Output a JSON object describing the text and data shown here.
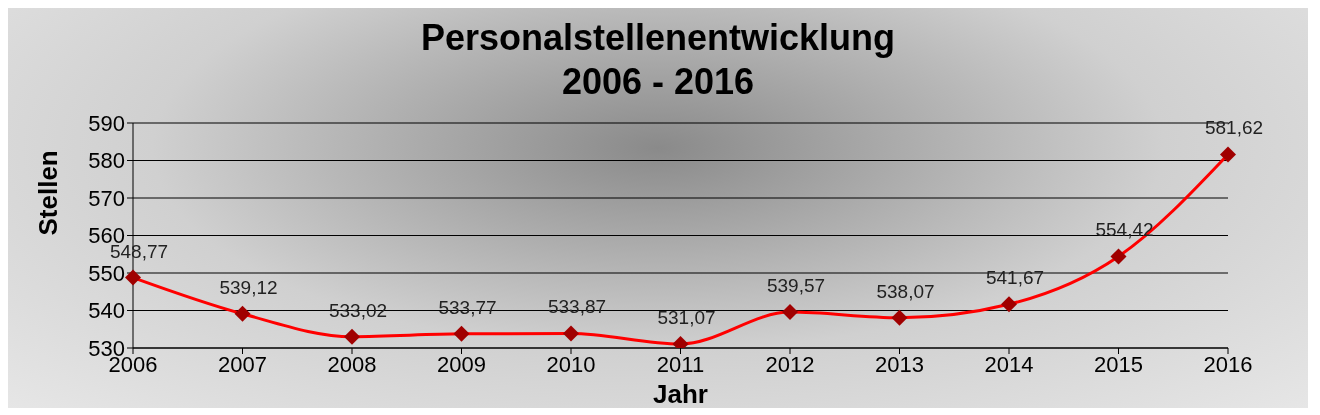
{
  "chart_data": {
    "type": "line",
    "title": "Personalstellenentwicklung\n2006 - 2016",
    "xlabel": "Jahr",
    "ylabel": "Stellen",
    "categories": [
      "2006",
      "2007",
      "2008",
      "2009",
      "2010",
      "2011",
      "2012",
      "2013",
      "2014",
      "2015",
      "2016"
    ],
    "series": [
      {
        "color": "#ff0000",
        "values": [
          548.77,
          539.12,
          533.02,
          533.77,
          533.87,
          531.07,
          539.57,
          538.07,
          541.67,
          554.42,
          581.62
        ],
        "value_labels": [
          "548,77",
          "539,12",
          "533,02",
          "533,77",
          "533,87",
          "531,07",
          "539,57",
          "538,07",
          "541,67",
          "554,42",
          "581,62"
        ]
      }
    ],
    "ylim": [
      530,
      590
    ],
    "yticks": [
      530,
      540,
      550,
      560,
      570,
      580,
      590
    ],
    "grid": "y",
    "marker": "diamond",
    "line_style": "solid"
  }
}
